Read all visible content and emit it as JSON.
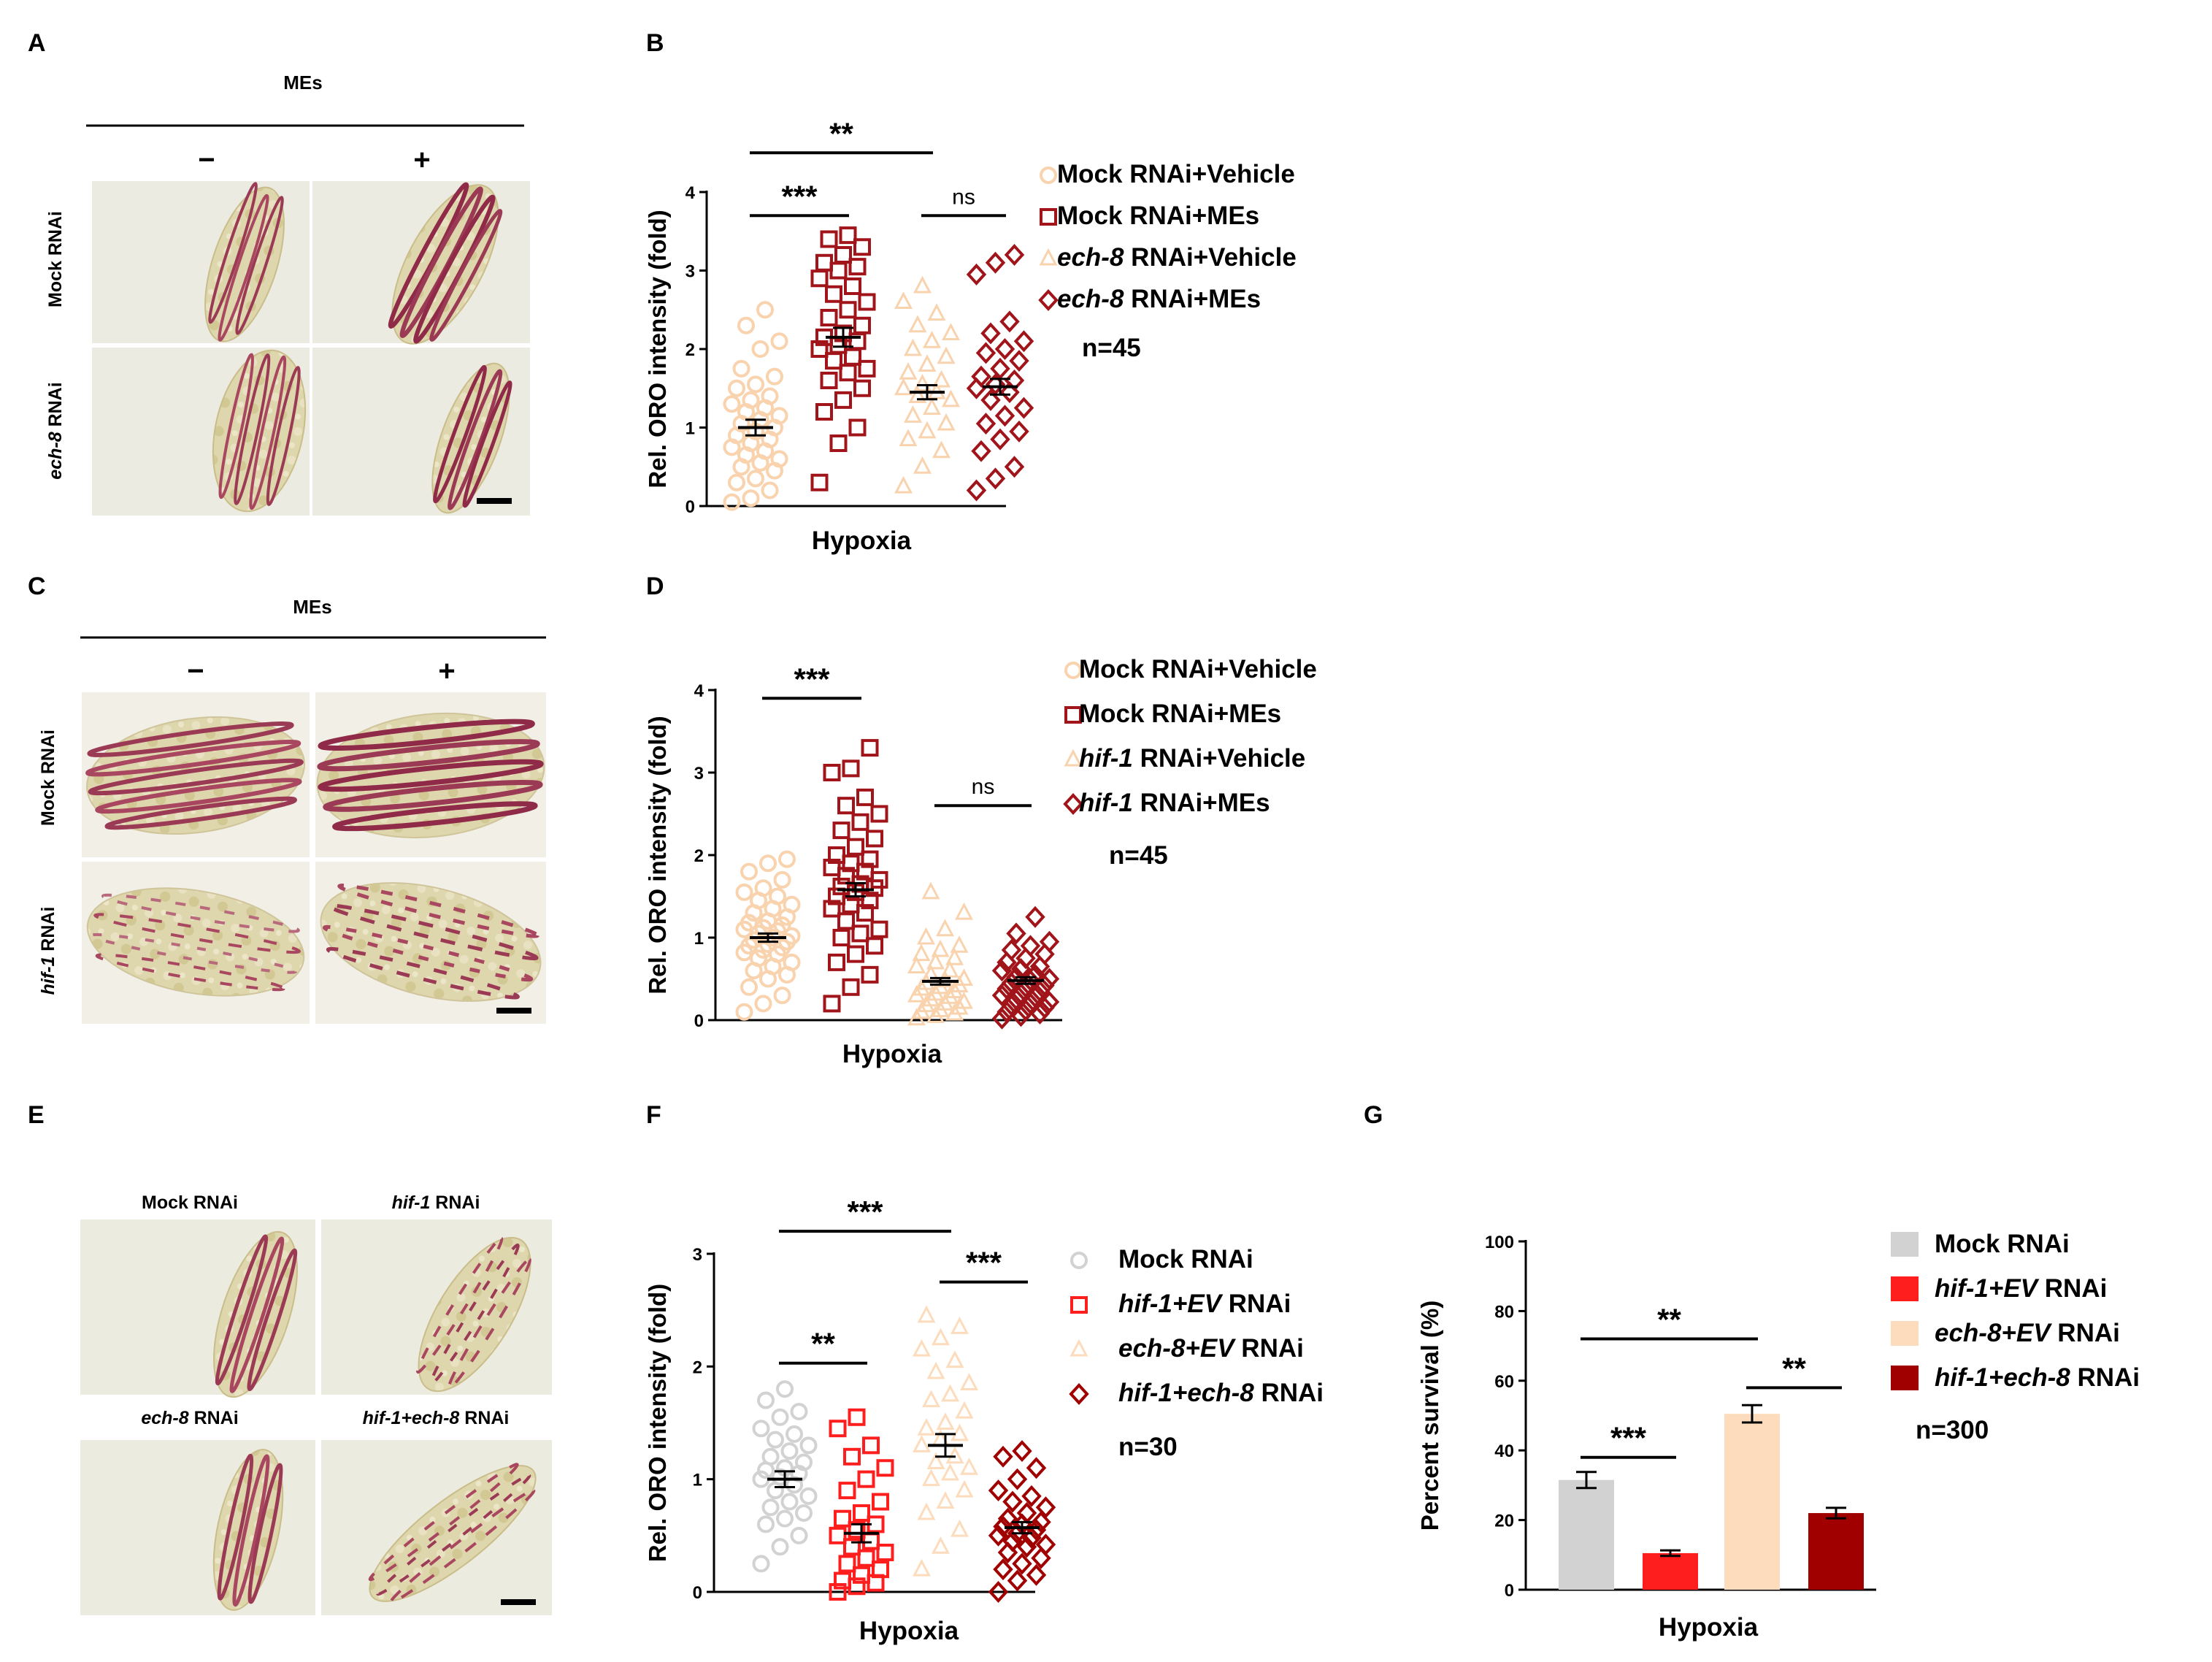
{
  "panels": {
    "A": {
      "label": "A",
      "header": "MEs",
      "minus": "−",
      "plus": "+",
      "rows": [
        "Mock RNAi",
        {
          "it": "ech-8",
          "rest": " RNAi"
        }
      ]
    },
    "C": {
      "label": "C",
      "header": "MEs",
      "minus": "−",
      "plus": "+",
      "rows": [
        "Mock RNAi",
        {
          "it": "hif-1",
          "rest": " RNAi"
        }
      ]
    },
    "E": {
      "label": "E",
      "images": [
        "Mock RNAi",
        {
          "it": "hif-1",
          "rest": " RNAi"
        },
        {
          "it": "ech-8",
          "rest": " RNAi"
        },
        {
          "it": "hif-1+ech-8",
          "rest": " RNAi"
        }
      ]
    }
  },
  "colors": {
    "light": "#f9d2ae",
    "dark": "#a0141a",
    "grey": "#d2d2d2",
    "red": "#ff1e1e",
    "peach": "#fcdcbc",
    "darkred": "#a00000"
  },
  "chart_data": [
    {
      "id": "B",
      "label": "B",
      "type": "scatter",
      "ylabel": "Rel. ORO intensity (fold)",
      "xlabel": "Hypoxia",
      "ylim": [
        0,
        4
      ],
      "yticks": [
        "0",
        "1",
        "2",
        "3",
        "4"
      ],
      "series": [
        {
          "name": "Mock RNAi+Vehicle",
          "mean": 1.0,
          "sem": 0.1,
          "marker": "circle",
          "color": "light",
          "values": [
            0.05,
            0.1,
            0.2,
            0.3,
            0.35,
            0.45,
            0.5,
            0.55,
            0.6,
            0.65,
            0.7,
            0.75,
            0.8,
            0.85,
            0.9,
            0.95,
            1.0,
            1.05,
            1.1,
            1.15,
            1.2,
            1.25,
            1.3,
            1.35,
            1.4,
            1.5,
            1.55,
            1.65,
            1.75,
            2.0,
            2.1,
            2.3,
            2.5
          ]
        },
        {
          "name": "Mock RNAi+MEs",
          "mean": 2.15,
          "sem": 0.12,
          "marker": "square",
          "color": "dark",
          "values": [
            0.3,
            0.8,
            1.0,
            1.2,
            1.35,
            1.5,
            1.6,
            1.7,
            1.75,
            1.85,
            1.9,
            2.0,
            2.05,
            2.1,
            2.15,
            2.2,
            2.3,
            2.4,
            2.5,
            2.6,
            2.7,
            2.8,
            2.9,
            3.0,
            3.05,
            3.1,
            3.2,
            3.3,
            3.4,
            3.45
          ]
        },
        {
          "name": "ech-8 RNAi+Vehicle",
          "name_it": "ech-8",
          "name_rest": " RNAi+Vehicle",
          "mean": 1.45,
          "sem": 0.09,
          "marker": "triangle",
          "color": "light",
          "values": [
            0.25,
            0.5,
            0.7,
            0.85,
            0.95,
            1.05,
            1.15,
            1.25,
            1.35,
            1.4,
            1.45,
            1.5,
            1.55,
            1.6,
            1.7,
            1.8,
            1.9,
            2.0,
            2.1,
            2.2,
            2.3,
            2.45,
            2.6,
            2.8
          ]
        },
        {
          "name": "ech-8 RNAi+MEs",
          "name_it": "ech-8",
          "name_rest": " RNAi+MEs",
          "mean": 1.52,
          "sem": 0.1,
          "marker": "diamond",
          "color": "dark",
          "values": [
            0.2,
            0.35,
            0.5,
            0.7,
            0.85,
            0.95,
            1.05,
            1.15,
            1.25,
            1.35,
            1.45,
            1.5,
            1.55,
            1.6,
            1.65,
            1.75,
            1.85,
            1.95,
            2.0,
            2.1,
            2.2,
            2.35,
            2.95,
            3.1,
            3.2
          ]
        }
      ],
      "significance": [
        {
          "text": "***",
          "from": 0,
          "to": 1,
          "y": 3.7
        },
        {
          "text": "ns",
          "from": 2,
          "to": 3,
          "y": 3.7
        },
        {
          "text": "**",
          "from": 0,
          "to": 2,
          "y": 4.5
        }
      ],
      "n": "n=45"
    },
    {
      "id": "D",
      "label": "D",
      "type": "scatter",
      "ylabel": "Rel. ORO intensity (fold)",
      "xlabel": "Hypoxia",
      "ylim": [
        0,
        4
      ],
      "yticks": [
        "0",
        "1",
        "2",
        "3",
        "4"
      ],
      "series": [
        {
          "name": "Mock RNAi+Vehicle",
          "mean": 1.0,
          "sem": 0.05,
          "marker": "circle",
          "color": "light",
          "values": [
            0.1,
            0.2,
            0.3,
            0.4,
            0.5,
            0.55,
            0.6,
            0.65,
            0.7,
            0.75,
            0.8,
            0.82,
            0.85,
            0.88,
            0.9,
            0.92,
            0.95,
            0.97,
            1.0,
            1.02,
            1.05,
            1.08,
            1.1,
            1.12,
            1.15,
            1.18,
            1.2,
            1.25,
            1.3,
            1.35,
            1.4,
            1.45,
            1.5,
            1.55,
            1.6,
            1.7,
            1.8,
            1.9,
            1.95
          ]
        },
        {
          "name": "Mock RNAi+MEs",
          "mean": 1.58,
          "sem": 0.08,
          "marker": "square",
          "color": "dark",
          "values": [
            0.2,
            0.4,
            0.55,
            0.7,
            0.8,
            0.9,
            1.0,
            1.05,
            1.1,
            1.2,
            1.3,
            1.35,
            1.4,
            1.45,
            1.5,
            1.55,
            1.6,
            1.62,
            1.65,
            1.7,
            1.75,
            1.8,
            1.85,
            1.9,
            1.95,
            2.0,
            2.1,
            2.2,
            2.3,
            2.4,
            2.5,
            2.6,
            2.7,
            3.0,
            3.05,
            3.3
          ]
        },
        {
          "name": "hif-1 RNAi+Vehicle",
          "name_it": "hif-1",
          "name_rest": " RNAi+Vehicle",
          "mean": 0.47,
          "sem": 0.04,
          "marker": "triangle",
          "color": "light",
          "values": [
            0.02,
            0.05,
            0.08,
            0.1,
            0.12,
            0.15,
            0.18,
            0.2,
            0.22,
            0.25,
            0.28,
            0.3,
            0.32,
            0.35,
            0.38,
            0.4,
            0.42,
            0.45,
            0.48,
            0.5,
            0.55,
            0.6,
            0.65,
            0.7,
            0.75,
            0.8,
            0.85,
            0.9,
            1.0,
            1.1,
            1.3,
            1.55
          ]
        },
        {
          "name": "hif-1 RNAi+MEs",
          "name_it": "hif-1",
          "name_rest": " RNAi+MEs",
          "mean": 0.48,
          "sem": 0.04,
          "marker": "diamond",
          "color": "dark",
          "values": [
            0.02,
            0.05,
            0.08,
            0.1,
            0.12,
            0.15,
            0.18,
            0.2,
            0.22,
            0.25,
            0.28,
            0.3,
            0.32,
            0.35,
            0.38,
            0.4,
            0.42,
            0.45,
            0.48,
            0.5,
            0.52,
            0.55,
            0.6,
            0.62,
            0.65,
            0.7,
            0.75,
            0.8,
            0.85,
            0.9,
            0.95,
            1.05,
            1.25
          ]
        }
      ],
      "significance": [
        {
          "text": "***",
          "from": 0,
          "to": 1,
          "y": 3.9
        },
        {
          "text": "ns",
          "from": 2,
          "to": 3,
          "y": 2.6
        }
      ],
      "n": "n=45"
    },
    {
      "id": "F",
      "label": "F",
      "type": "scatter",
      "ylabel": "Rel. ORO intensity (fold)",
      "xlabel": "Hypoxia",
      "ylim": [
        0,
        3
      ],
      "yticks": [
        "0",
        "1",
        "2",
        "3"
      ],
      "series": [
        {
          "name": "Mock RNAi",
          "mean": 1.0,
          "sem": 0.07,
          "marker": "circle",
          "color": "grey",
          "values": [
            0.25,
            0.4,
            0.5,
            0.6,
            0.65,
            0.7,
            0.75,
            0.8,
            0.85,
            0.9,
            0.95,
            1.0,
            1.02,
            1.05,
            1.08,
            1.1,
            1.15,
            1.2,
            1.25,
            1.3,
            1.35,
            1.4,
            1.45,
            1.55,
            1.6,
            1.7,
            1.8
          ]
        },
        {
          "name": "hif-1+EV RNAi",
          "name_it": "hif-1+EV",
          "name_rest": " RNAi",
          "mean": 0.52,
          "sem": 0.08,
          "marker": "square",
          "color": "red",
          "values": [
            0.0,
            0.05,
            0.08,
            0.1,
            0.15,
            0.2,
            0.25,
            0.3,
            0.35,
            0.4,
            0.45,
            0.5,
            0.55,
            0.6,
            0.65,
            0.7,
            0.8,
            0.9,
            1.0,
            1.1,
            1.2,
            1.3,
            1.45,
            1.55
          ]
        },
        {
          "name": "ech-8+EV RNAi",
          "name_it": "ech-8+EV",
          "name_rest": " RNAi",
          "mean": 1.3,
          "sem": 0.1,
          "marker": "triangle",
          "color": "peach",
          "values": [
            0.2,
            0.4,
            0.55,
            0.7,
            0.8,
            0.9,
            1.0,
            1.05,
            1.1,
            1.15,
            1.2,
            1.3,
            1.35,
            1.4,
            1.45,
            1.5,
            1.6,
            1.7,
            1.75,
            1.85,
            1.95,
            2.05,
            2.15,
            2.25,
            2.35,
            2.45
          ]
        },
        {
          "name": "hif-1+ech-8 RNAi",
          "name_it": "hif-1+ech-8",
          "name_rest": " RNAi",
          "mean": 0.57,
          "sem": 0.05,
          "marker": "diamond",
          "color": "darkred",
          "values": [
            0.0,
            0.1,
            0.15,
            0.2,
            0.25,
            0.3,
            0.35,
            0.4,
            0.42,
            0.45,
            0.48,
            0.5,
            0.52,
            0.55,
            0.58,
            0.6,
            0.62,
            0.65,
            0.7,
            0.75,
            0.8,
            0.85,
            0.9,
            1.0,
            1.1,
            1.2,
            1.25
          ]
        }
      ],
      "significance": [
        {
          "text": "**",
          "from": 0,
          "to": 1,
          "y": 2.03
        },
        {
          "text": "***",
          "from": 2,
          "to": 3,
          "y": 2.75
        },
        {
          "text": "***",
          "from": 0,
          "to": 2,
          "y": 3.2
        }
      ],
      "n": "n=30"
    },
    {
      "id": "G",
      "label": "G",
      "type": "bar",
      "ylabel": "Percent survival (%)",
      "xlabel": "Hypoxia",
      "ylim": [
        0,
        100
      ],
      "yticks": [
        "0",
        "20",
        "40",
        "60",
        "80",
        "100"
      ],
      "categories": [
        "Mock RNAi",
        "hif-1+EV RNAi",
        "ech-8+EV RNAi",
        "hif-1+ech-8 RNAi"
      ],
      "series": [
        {
          "name": "Mock RNAi",
          "value": 31.5,
          "sem": 2.3,
          "color": "grey"
        },
        {
          "name": "hif-1+EV RNAi",
          "name_it": "hif-1+EV",
          "name_rest": " RNAi",
          "value": 10.5,
          "sem": 0.8,
          "color": "red"
        },
        {
          "name": "ech-8+EV RNAi",
          "name_it": "ech-8+EV",
          "name_rest": " RNAi",
          "value": 50.5,
          "sem": 2.5,
          "color": "peach"
        },
        {
          "name": "hif-1+ech-8 RNAi",
          "name_it": "hif-1+ech-8",
          "name_rest": " RNAi",
          "value": 22.0,
          "sem": 1.5,
          "color": "darkred"
        }
      ],
      "significance": [
        {
          "text": "***",
          "from": 0,
          "to": 1,
          "y": 38
        },
        {
          "text": "**",
          "from": 2,
          "to": 3,
          "y": 58
        },
        {
          "text": "**",
          "from": 0,
          "to": 2,
          "y": 72
        }
      ],
      "n": "n=300"
    }
  ]
}
